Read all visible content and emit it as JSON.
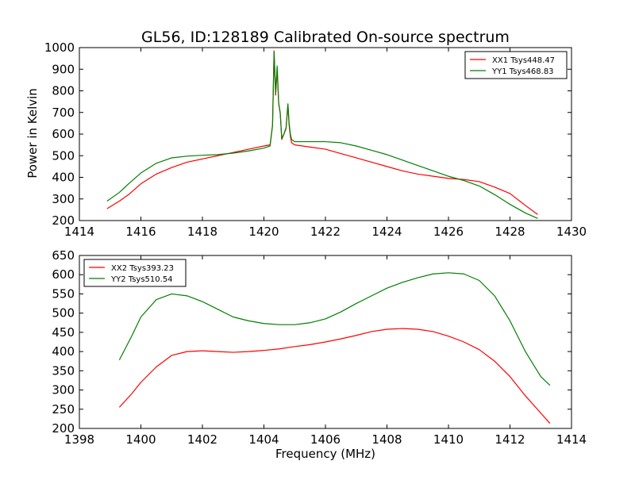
{
  "figure": {
    "title": "GL56, ID:128189 Calibrated On-source spectrum",
    "xlabel": "Frequency (MHz)"
  },
  "chart_data": [
    {
      "type": "line",
      "title": "GL56, ID:128189 Calibrated On-source spectrum",
      "xlabel": "",
      "ylabel": "Power in Kelvin",
      "xlim": [
        1414,
        1430
      ],
      "ylim": [
        200,
        1000
      ],
      "xticks": [
        1414,
        1416,
        1418,
        1420,
        1422,
        1424,
        1426,
        1428,
        1430
      ],
      "yticks": [
        200,
        300,
        400,
        500,
        600,
        700,
        800,
        900,
        1000
      ],
      "grid": false,
      "legend_position": "top-right",
      "series": [
        {
          "name": "XX1 Tsys448.47",
          "color": "#ff0000",
          "x": [
            1414.9,
            1415.3,
            1415.6,
            1416.0,
            1416.5,
            1417.0,
            1417.5,
            1418.0,
            1418.5,
            1419.0,
            1419.5,
            1420.0,
            1420.2,
            1420.28,
            1420.33,
            1420.38,
            1420.43,
            1420.48,
            1420.53,
            1420.58,
            1420.65,
            1420.72,
            1420.78,
            1420.82,
            1420.86,
            1420.9,
            1421.0,
            1421.5,
            1422.0,
            1422.5,
            1423.0,
            1423.5,
            1424.0,
            1424.5,
            1425.0,
            1425.5,
            1426.0,
            1426.5,
            1427.0,
            1427.5,
            1428.0,
            1428.5,
            1428.9
          ],
          "y": [
            255,
            290,
            320,
            370,
            415,
            445,
            470,
            485,
            500,
            515,
            530,
            545,
            550,
            640,
            985,
            780,
            900,
            740,
            700,
            575,
            600,
            625,
            735,
            640,
            590,
            560,
            550,
            540,
            530,
            510,
            490,
            470,
            450,
            430,
            415,
            405,
            395,
            390,
            380,
            355,
            325,
            270,
            228
          ]
        },
        {
          "name": "YY1 Tsys468.83",
          "color": "#008000",
          "x": [
            1414.9,
            1415.3,
            1415.6,
            1416.0,
            1416.5,
            1417.0,
            1417.5,
            1418.0,
            1418.5,
            1419.0,
            1419.5,
            1420.0,
            1420.2,
            1420.28,
            1420.33,
            1420.38,
            1420.43,
            1420.48,
            1420.53,
            1420.58,
            1420.65,
            1420.72,
            1420.78,
            1420.82,
            1420.86,
            1420.9,
            1421.0,
            1421.5,
            1422.0,
            1422.5,
            1423.0,
            1423.5,
            1424.0,
            1424.5,
            1425.0,
            1425.5,
            1426.0,
            1426.5,
            1427.0,
            1427.5,
            1428.0,
            1428.5,
            1428.9
          ],
          "y": [
            290,
            330,
            370,
            420,
            465,
            490,
            498,
            502,
            505,
            512,
            522,
            535,
            545,
            640,
            980,
            790,
            915,
            745,
            695,
            580,
            600,
            630,
            740,
            650,
            600,
            575,
            565,
            565,
            565,
            560,
            545,
            525,
            505,
            480,
            455,
            430,
            405,
            385,
            360,
            320,
            275,
            235,
            210
          ]
        }
      ]
    },
    {
      "type": "line",
      "title": "",
      "xlabel": "Frequency (MHz)",
      "ylabel": "",
      "xlim": [
        1398,
        1414
      ],
      "ylim": [
        200,
        650
      ],
      "xticks": [
        1398,
        1400,
        1402,
        1404,
        1406,
        1408,
        1410,
        1412,
        1414
      ],
      "yticks": [
        200,
        250,
        300,
        350,
        400,
        450,
        500,
        550,
        600,
        650
      ],
      "grid": false,
      "legend_position": "top-left",
      "series": [
        {
          "name": "XX2 Tsys393.23",
          "color": "#ff0000",
          "x": [
            1399.3,
            1399.7,
            1400.0,
            1400.5,
            1401.0,
            1401.5,
            1402.0,
            1402.5,
            1403.0,
            1403.5,
            1404.0,
            1404.5,
            1405.0,
            1405.5,
            1406.0,
            1406.5,
            1407.0,
            1407.5,
            1408.0,
            1408.5,
            1409.0,
            1409.5,
            1410.0,
            1410.5,
            1411.0,
            1411.5,
            1412.0,
            1412.5,
            1413.0,
            1413.3
          ],
          "y": [
            255,
            290,
            320,
            360,
            390,
            400,
            402,
            400,
            398,
            400,
            403,
            407,
            413,
            418,
            425,
            433,
            442,
            452,
            458,
            460,
            458,
            452,
            440,
            425,
            405,
            375,
            335,
            285,
            240,
            213
          ]
        },
        {
          "name": "YY2 Tsys510.54",
          "color": "#008000",
          "x": [
            1399.3,
            1399.7,
            1400.0,
            1400.5,
            1401.0,
            1401.5,
            1402.0,
            1402.5,
            1403.0,
            1403.5,
            1404.0,
            1404.5,
            1405.0,
            1405.5,
            1406.0,
            1406.5,
            1407.0,
            1407.5,
            1408.0,
            1408.5,
            1409.0,
            1409.5,
            1410.0,
            1410.5,
            1411.0,
            1411.5,
            1412.0,
            1412.5,
            1413.0,
            1413.3
          ],
          "y": [
            378,
            440,
            490,
            535,
            550,
            545,
            530,
            510,
            490,
            480,
            473,
            470,
            470,
            475,
            485,
            503,
            525,
            545,
            565,
            580,
            592,
            602,
            605,
            602,
            585,
            545,
            480,
            400,
            335,
            312
          ]
        }
      ]
    }
  ]
}
